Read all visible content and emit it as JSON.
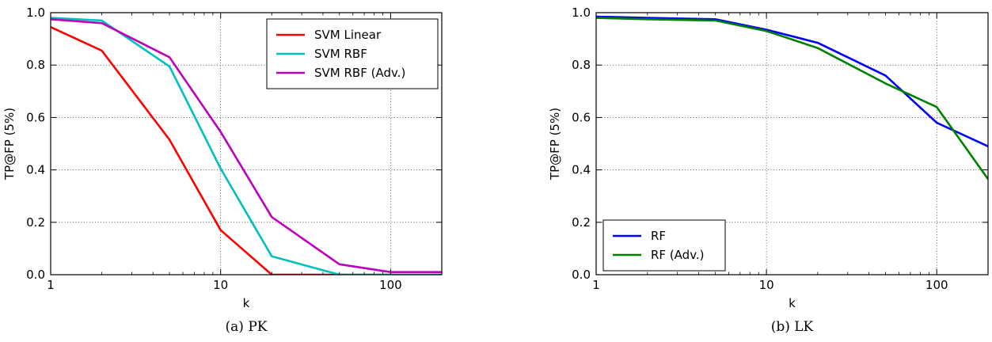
{
  "chart_data": [
    {
      "type": "line",
      "caption": "(a) PK",
      "xlabel": "k",
      "ylabel": "TP@FP (5%)",
      "xscale": "log",
      "xlim": [
        1,
        200
      ],
      "ylim": [
        0,
        1
      ],
      "xticks": [
        {
          "v": 1,
          "label": "1"
        },
        {
          "v": 10,
          "label": "10"
        },
        {
          "v": 100,
          "label": "100"
        }
      ],
      "yticks": [
        {
          "v": 0,
          "label": "0.0"
        },
        {
          "v": 0.2,
          "label": "0.2"
        },
        {
          "v": 0.4,
          "label": "0.4"
        },
        {
          "v": 0.6,
          "label": "0.6"
        },
        {
          "v": 0.8,
          "label": "0.8"
        },
        {
          "v": 1.0,
          "label": "1.0"
        }
      ],
      "grid": true,
      "legend_position": "top-right",
      "series": [
        {
          "name": "SVM Linear",
          "color": "#ff0000",
          "x": [
            1,
            2,
            5,
            10,
            20,
            50,
            100,
            200
          ],
          "y": [
            0.945,
            0.855,
            0.515,
            0.17,
            0.0,
            0.0,
            0.0,
            0.0
          ]
        },
        {
          "name": "SVM RBF",
          "color": "#00bfbf",
          "x": [
            1,
            2,
            5,
            10,
            20,
            50,
            100,
            200
          ],
          "y": [
            0.98,
            0.97,
            0.795,
            0.405,
            0.07,
            0.0,
            0.0,
            0.0
          ]
        },
        {
          "name": "SVM RBF (Adv.)",
          "color": "#bf00bf",
          "x": [
            1,
            2,
            5,
            10,
            20,
            50,
            100,
            200
          ],
          "y": [
            0.975,
            0.96,
            0.83,
            0.545,
            0.22,
            0.04,
            0.01,
            0.01
          ]
        }
      ]
    },
    {
      "type": "line",
      "caption": "(b) LK",
      "xlabel": "k",
      "ylabel": "TP@FP (5%)",
      "xscale": "log",
      "xlim": [
        1,
        200
      ],
      "ylim": [
        0,
        1
      ],
      "xticks": [
        {
          "v": 1,
          "label": "1"
        },
        {
          "v": 10,
          "label": "10"
        },
        {
          "v": 100,
          "label": "100"
        }
      ],
      "yticks": [
        {
          "v": 0,
          "label": "0.0"
        },
        {
          "v": 0.2,
          "label": "0.2"
        },
        {
          "v": 0.4,
          "label": "0.4"
        },
        {
          "v": 0.6,
          "label": "0.6"
        },
        {
          "v": 0.8,
          "label": "0.8"
        },
        {
          "v": 1.0,
          "label": "1.0"
        }
      ],
      "grid": true,
      "legend_position": "bottom-left",
      "series": [
        {
          "name": "RF",
          "color": "#0000ff",
          "x": [
            1,
            2,
            5,
            10,
            20,
            50,
            100,
            200
          ],
          "y": [
            0.985,
            0.98,
            0.975,
            0.935,
            0.885,
            0.76,
            0.58,
            0.49
          ]
        },
        {
          "name": "RF (Adv.)",
          "color": "#008000",
          "x": [
            1,
            2,
            5,
            10,
            20,
            50,
            100,
            200
          ],
          "y": [
            0.98,
            0.975,
            0.97,
            0.93,
            0.865,
            0.73,
            0.64,
            0.365
          ]
        }
      ]
    }
  ]
}
